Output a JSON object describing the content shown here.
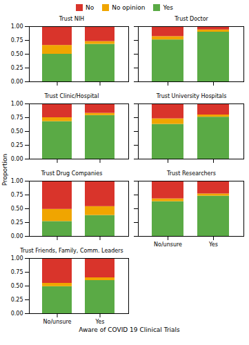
{
  "chart_data": [
    {
      "type": "bar",
      "title": "Trust NIH",
      "stacked": true,
      "tick_labels": "y",
      "categories": [
        "No/unsure",
        "Yes"
      ],
      "series": [
        {
          "name": "Yes",
          "color": "#5aaa45",
          "values": [
            0.5,
            0.68
          ]
        },
        {
          "name": "No opinion",
          "color": "#f0a500",
          "values": [
            0.16,
            0.05
          ]
        },
        {
          "name": "No",
          "color": "#d9342b",
          "values": [
            0.34,
            0.27
          ]
        }
      ],
      "ylim": [
        0,
        1.0
      ],
      "yticks": [
        {
          "value": 0,
          "label": "0.00"
        },
        {
          "value": 0.25,
          "label": "0.25"
        },
        {
          "value": 0.5,
          "label": "0.50"
        },
        {
          "value": 0.75,
          "label": "0.75"
        },
        {
          "value": 1.0,
          "label": "1.00"
        }
      ]
    },
    {
      "type": "bar",
      "title": "Trust Doctor",
      "stacked": true,
      "tick_labels": false,
      "categories": [
        "No/unsure",
        "Yes"
      ],
      "series": [
        {
          "name": "Yes",
          "color": "#5aaa45",
          "values": [
            0.76,
            0.9
          ]
        },
        {
          "name": "No opinion",
          "color": "#f0a500",
          "values": [
            0.06,
            0.04
          ]
        },
        {
          "name": "No",
          "color": "#d9342b",
          "values": [
            0.18,
            0.06
          ]
        }
      ],
      "ylim": [
        0,
        1.0
      ],
      "yticks": [
        {
          "value": 0,
          "label": "0.00"
        },
        {
          "value": 0.25,
          "label": "0.25"
        },
        {
          "value": 0.5,
          "label": "0.50"
        },
        {
          "value": 0.75,
          "label": "0.75"
        },
        {
          "value": 1.0,
          "label": "1.00"
        }
      ]
    },
    {
      "type": "bar",
      "title": "Trust Clinic/Hospital",
      "stacked": true,
      "tick_labels": "y",
      "categories": [
        "No/unsure",
        "Yes"
      ],
      "series": [
        {
          "name": "Yes",
          "color": "#5aaa45",
          "values": [
            0.68,
            0.79
          ]
        },
        {
          "name": "No opinion",
          "color": "#f0a500",
          "values": [
            0.07,
            0.04
          ]
        },
        {
          "name": "No",
          "color": "#d9342b",
          "values": [
            0.25,
            0.17
          ]
        }
      ],
      "ylim": [
        0,
        1.0
      ],
      "yticks": [
        {
          "value": 0,
          "label": "0.00"
        },
        {
          "value": 0.25,
          "label": "0.25"
        },
        {
          "value": 0.5,
          "label": "0.50"
        },
        {
          "value": 0.75,
          "label": "0.75"
        },
        {
          "value": 1.0,
          "label": "1.00"
        }
      ]
    },
    {
      "type": "bar",
      "title": "Trust University Hospitals",
      "stacked": true,
      "tick_labels": false,
      "categories": [
        "No/unsure",
        "Yes"
      ],
      "series": [
        {
          "name": "Yes",
          "color": "#5aaa45",
          "values": [
            0.63,
            0.76
          ]
        },
        {
          "name": "No opinion",
          "color": "#f0a500",
          "values": [
            0.1,
            0.04
          ]
        },
        {
          "name": "No",
          "color": "#d9342b",
          "values": [
            0.27,
            0.2
          ]
        }
      ],
      "ylim": [
        0,
        1.0
      ],
      "yticks": [
        {
          "value": 0,
          "label": "0.00"
        },
        {
          "value": 0.25,
          "label": "0.25"
        },
        {
          "value": 0.5,
          "label": "0.50"
        },
        {
          "value": 0.75,
          "label": "0.75"
        },
        {
          "value": 1.0,
          "label": "1.00"
        }
      ]
    },
    {
      "type": "bar",
      "title": "Trust Drug Companies",
      "stacked": true,
      "tick_labels": "y",
      "categories": [
        "No/unsure",
        "Yes"
      ],
      "series": [
        {
          "name": "Yes",
          "color": "#5aaa45",
          "values": [
            0.27,
            0.38
          ]
        },
        {
          "name": "No opinion",
          "color": "#f0a500",
          "values": [
            0.22,
            0.16
          ]
        },
        {
          "name": "No",
          "color": "#d9342b",
          "values": [
            0.51,
            0.46
          ]
        }
      ],
      "ylim": [
        0,
        1.0
      ],
      "yticks": [
        {
          "value": 0,
          "label": "0.00"
        },
        {
          "value": 0.25,
          "label": "0.25"
        },
        {
          "value": 0.5,
          "label": "0.50"
        },
        {
          "value": 0.75,
          "label": "0.75"
        },
        {
          "value": 1.0,
          "label": "1.00"
        }
      ]
    },
    {
      "type": "bar",
      "title": "Trust Researchers",
      "stacked": true,
      "tick_labels": "x",
      "categories": [
        "No/unsure",
        "Yes"
      ],
      "series": [
        {
          "name": "Yes",
          "color": "#5aaa45",
          "values": [
            0.63,
            0.73
          ]
        },
        {
          "name": "No opinion",
          "color": "#f0a500",
          "values": [
            0.05,
            0.04
          ]
        },
        {
          "name": "No",
          "color": "#d9342b",
          "values": [
            0.32,
            0.23
          ]
        }
      ],
      "ylim": [
        0,
        1.0
      ],
      "yticks": [
        {
          "value": 0,
          "label": "0.00"
        },
        {
          "value": 0.25,
          "label": "0.25"
        },
        {
          "value": 0.5,
          "label": "0.50"
        },
        {
          "value": 0.75,
          "label": "0.75"
        },
        {
          "value": 1.0,
          "label": "1.00"
        }
      ]
    },
    {
      "type": "bar",
      "title": "Trust Friends, Family, Comm. Leaders",
      "stacked": true,
      "categories": [
        "No/unsure",
        "Yes"
      ],
      "series": [
        {
          "name": "Yes",
          "color": "#5aaa45",
          "values": [
            0.49,
            0.6
          ]
        },
        {
          "name": "No opinion",
          "color": "#f0a500",
          "values": [
            0.06,
            0.05
          ]
        },
        {
          "name": "No",
          "color": "#d9342b",
          "values": [
            0.45,
            0.35
          ]
        }
      ],
      "ylim": [
        0,
        1.0
      ],
      "yticks": [
        {
          "value": 0,
          "label": "0.00"
        },
        {
          "value": 0.25,
          "label": "0.25"
        },
        {
          "value": 0.5,
          "label": "0.50"
        },
        {
          "value": 0.75,
          "label": "0.75"
        },
        {
          "value": 1.0,
          "label": "1.00"
        }
      ]
    }
  ],
  "xlabel": "Aware of COVID 19 Clinical Trials",
  "ylabel": "Proportion",
  "legend": "top"
}
